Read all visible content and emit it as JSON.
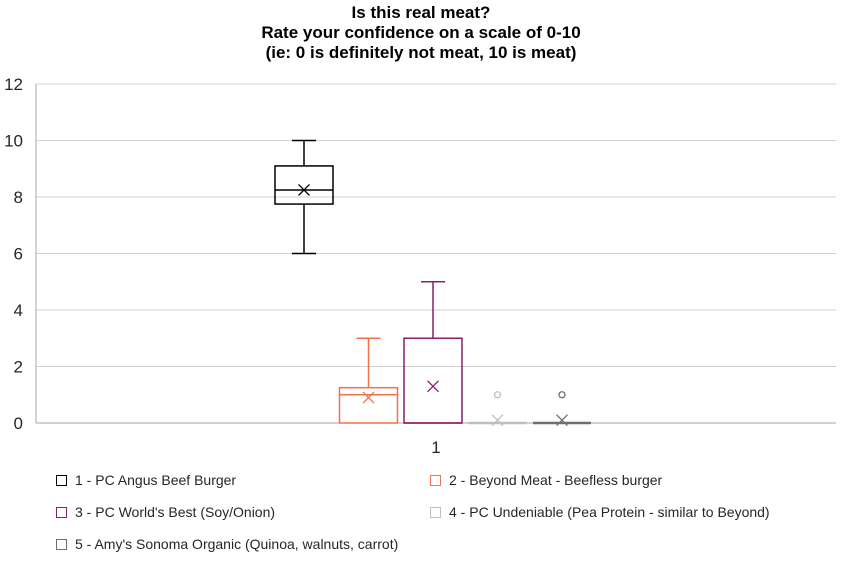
{
  "chart_data": {
    "type": "boxplot",
    "title_lines": [
      "Is this real meat?",
      "Rate your confidence on a scale of 0-10",
      "(ie: 0 is definitely not meat, 10 is meat)"
    ],
    "xlabel": "",
    "ylabel": "",
    "x_tick_labels": [
      "1"
    ],
    "ylim": [
      0,
      12
    ],
    "y_ticks": [
      "0",
      "2",
      "4",
      "6",
      "8",
      "10",
      "12"
    ],
    "grid": true,
    "legend_position": "bottom",
    "series": [
      {
        "name": "1 - PC Angus Beef Burger",
        "color": "#000000",
        "min": 6,
        "q1": 7.75,
        "median": 8.25,
        "q3": 9.1,
        "max": 10,
        "mean": 8.25,
        "outliers": []
      },
      {
        "name": "2 - Beyond Meat - Beefless burger",
        "color": "#f4714a",
        "min": 0,
        "q1": 0,
        "median": 1,
        "q3": 1.25,
        "max": 3,
        "mean": 0.9,
        "outliers": []
      },
      {
        "name": "3 - PC World's Best (Soy/Onion)",
        "color": "#8b1e6e",
        "min": 0,
        "q1": 0,
        "median": 0,
        "q3": 3,
        "max": 5,
        "mean": 1.3,
        "outliers": []
      },
      {
        "name": "4 - PC Undeniable (Pea Protein - similar to Beyond)",
        "color": "#bfbfbf",
        "min": 0,
        "q1": 0,
        "median": 0,
        "q3": 0,
        "max": 0,
        "mean": 0.1,
        "outliers": [
          1
        ]
      },
      {
        "name": "5 - Amy's Sonoma Organic (Quinoa, walnuts, carrot)",
        "color": "#6f6f6f",
        "min": 0,
        "q1": 0,
        "median": 0,
        "q3": 0,
        "max": 0,
        "mean": 0.1,
        "outliers": [
          1
        ]
      }
    ]
  }
}
